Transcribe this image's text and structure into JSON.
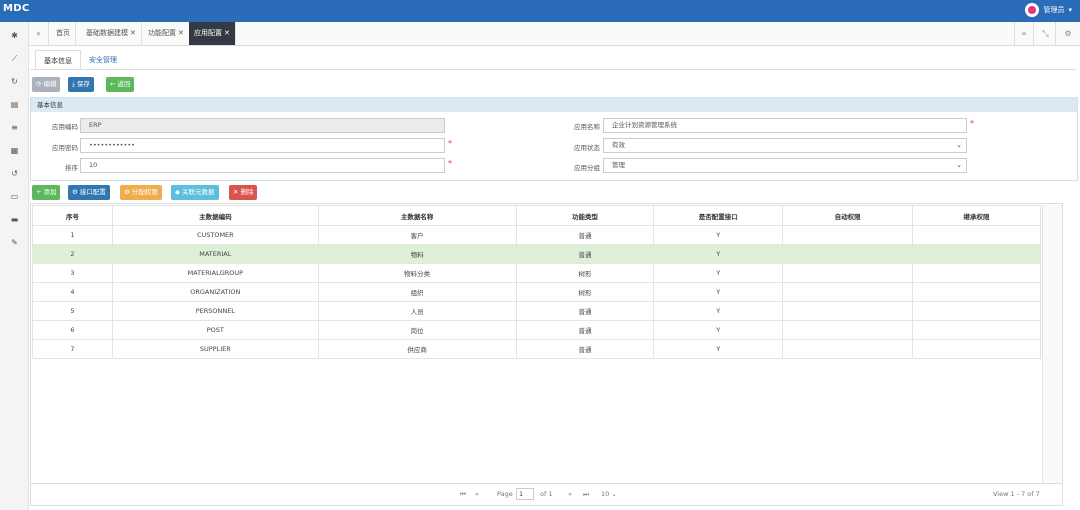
{
  "app": {
    "brand": "MDC",
    "user_name": "管理员"
  },
  "sidebar_icons": [
    "settings-icon",
    "chart-icon",
    "refresh-icon",
    "database-icon",
    "list-icon",
    "calendar-icon",
    "undo-icon",
    "card-icon",
    "stack-icon",
    "wrench-icon"
  ],
  "tabs": [
    {
      "label": "首页",
      "closable": false,
      "active": false
    },
    {
      "label": "基础数据建模",
      "closable": true,
      "active": false
    },
    {
      "label": "功能配置",
      "closable": true,
      "active": false
    },
    {
      "label": "应用配置",
      "closable": true,
      "active": true
    }
  ],
  "subtabs": [
    "基本信息",
    "安全管理"
  ],
  "toolbar": {
    "edit": "编辑",
    "save": "保存",
    "back": "返回"
  },
  "panel": {
    "title": "基本信息",
    "fields": {
      "app_code": {
        "label": "应用编码",
        "value": "ERP"
      },
      "app_password": {
        "label": "应用密码",
        "value": "••••••••••••"
      },
      "sort": {
        "label": "排序",
        "value": "10"
      },
      "app_name": {
        "label": "应用名称",
        "value": "企业计划资源管理系统"
      },
      "app_status": {
        "label": "应用状态",
        "value": "有效"
      },
      "app_group": {
        "label": "应用分组",
        "value": "管理"
      }
    }
  },
  "grid_toolbar": {
    "add": "添加",
    "interface": "接口配置",
    "assign": "分配权限",
    "relate": "关联元数据",
    "delete": "删除"
  },
  "table": {
    "headers": [
      "序号",
      "主数据编码",
      "主数据名称",
      "功能类型",
      "是否配置接口",
      "自动权限",
      "继承权限"
    ],
    "rows": [
      [
        "1",
        "CUSTOMER",
        "客户",
        "普通",
        "Y",
        "",
        ""
      ],
      [
        "2",
        "MATERIAL",
        "物料",
        "普通",
        "Y",
        "",
        ""
      ],
      [
        "3",
        "MATERIALGROUP",
        "物料分类",
        "树形",
        "Y",
        "",
        ""
      ],
      [
        "4",
        "ORGANIZATION",
        "组织",
        "树形",
        "Y",
        "",
        ""
      ],
      [
        "5",
        "PERSONNEL",
        "人员",
        "普通",
        "Y",
        "",
        ""
      ],
      [
        "6",
        "POST",
        "岗位",
        "普通",
        "Y",
        "",
        ""
      ],
      [
        "7",
        "SUPPLIER",
        "供应商",
        "普通",
        "Y",
        "",
        ""
      ]
    ],
    "selected_row": 2
  },
  "pager": {
    "page_label": "Page",
    "page_value": "1",
    "of_label": "of 1",
    "page_size": "10",
    "summary": "View 1 - 7 of 7"
  },
  "colors": {
    "topbar": "#2b6cb8",
    "active_tab": "#333a45",
    "selected_row": "#dff0d8"
  }
}
